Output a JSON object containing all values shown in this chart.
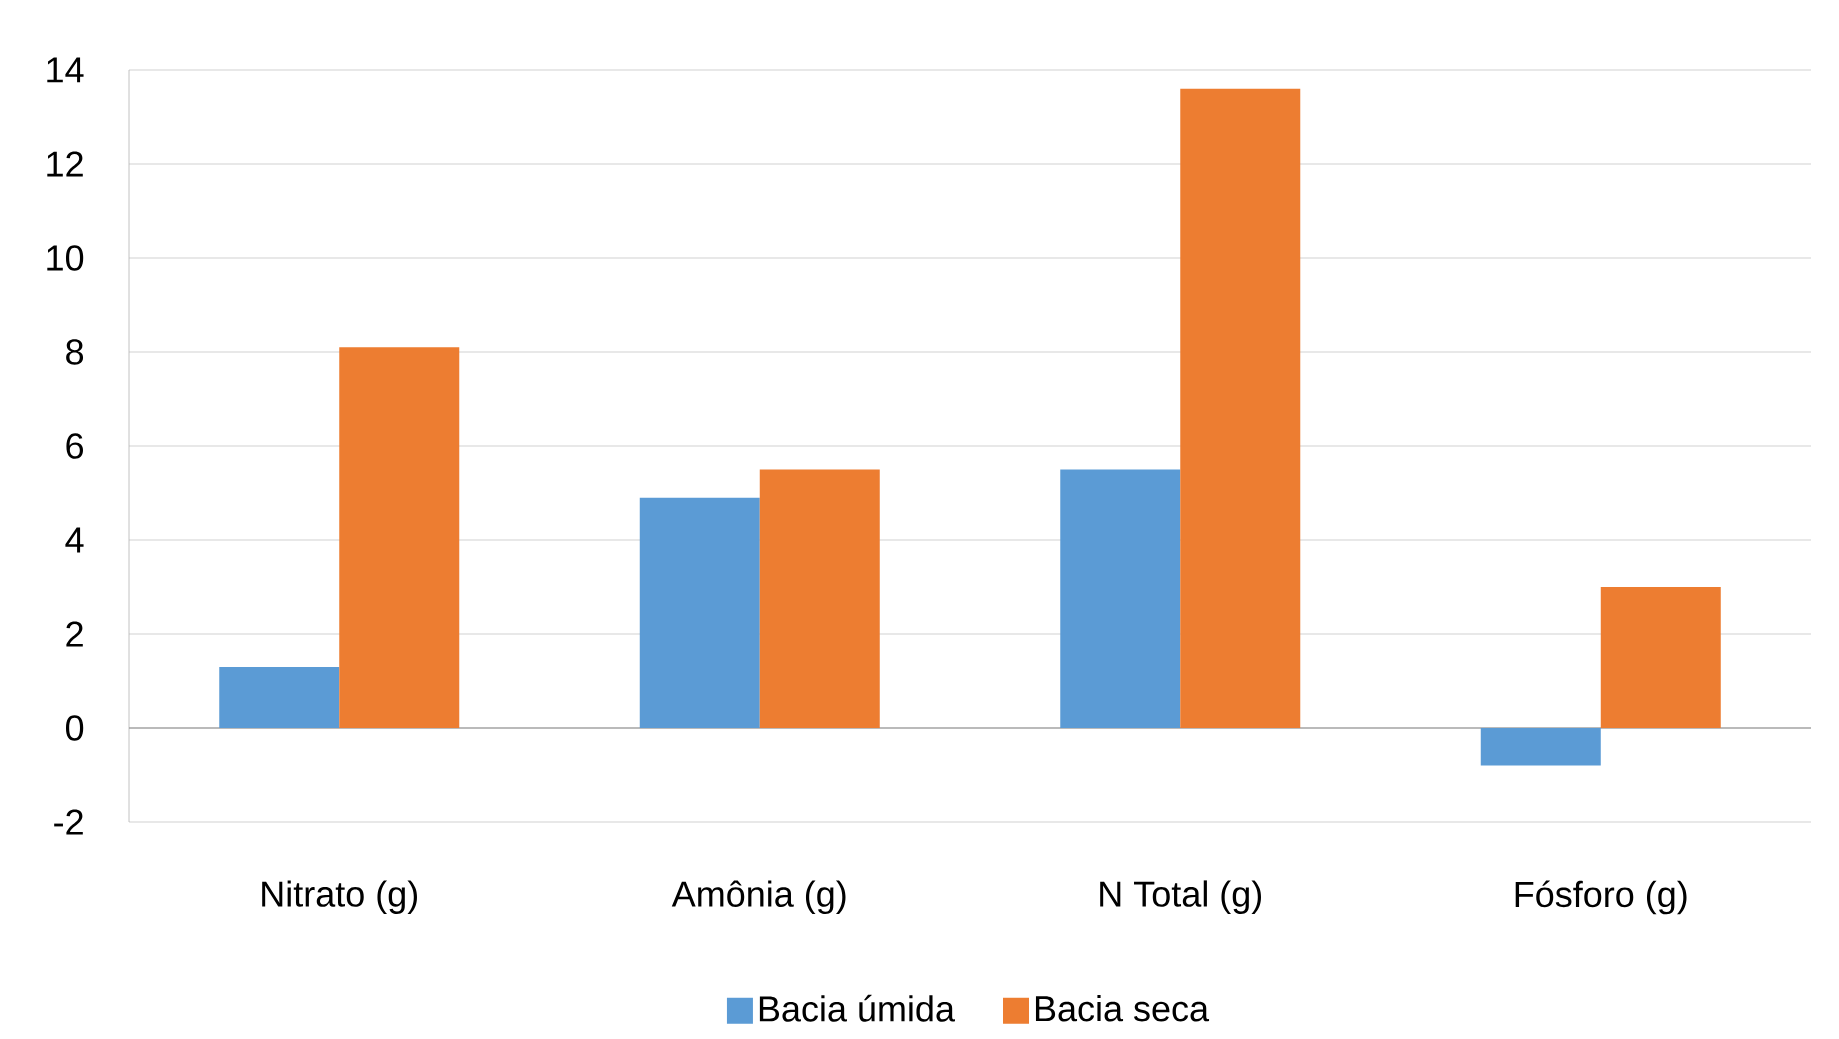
{
  "chart_data": {
    "type": "bar",
    "categories": [
      "Nitrato (g)",
      "Amônia (g)",
      "N Total (g)",
      "Fósforo (g)"
    ],
    "series": [
      {
        "name": "Bacia úmida",
        "color": "#5b9bd5",
        "values": [
          1.3,
          4.9,
          5.5,
          -0.8
        ]
      },
      {
        "name": "Bacia seca",
        "color": "#ed7d31",
        "values": [
          8.1,
          5.5,
          13.6,
          3.0
        ]
      }
    ],
    "ylim": [
      -2,
      14
    ],
    "yticks": [
      -2,
      0,
      2,
      4,
      6,
      8,
      10,
      12,
      14
    ],
    "grid": "y",
    "legend": "bottom"
  }
}
